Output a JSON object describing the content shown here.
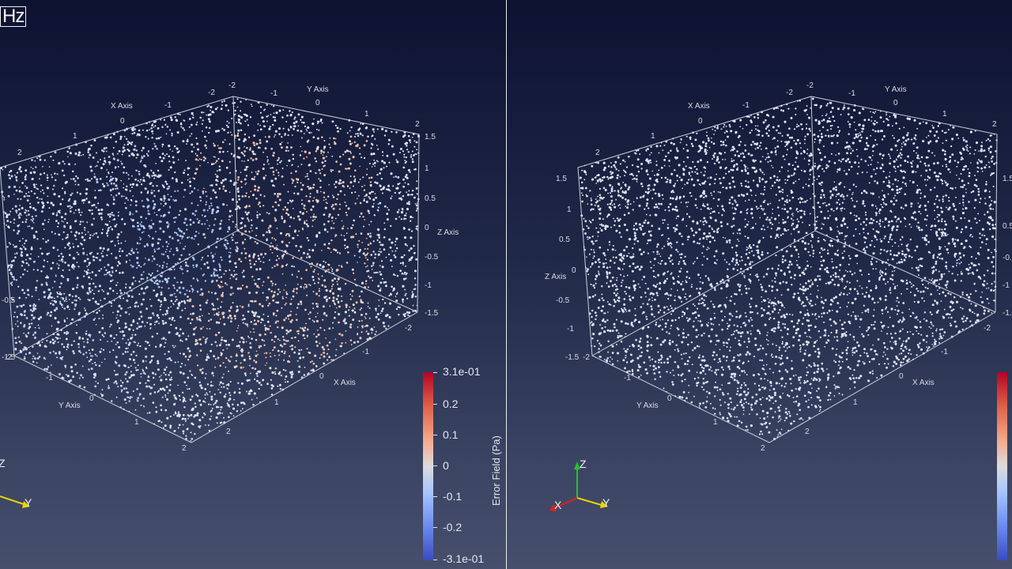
{
  "header": {
    "frequency_unit_label": "Hz"
  },
  "axes": {
    "x_title": "X Axis",
    "y_title": "Y Axis",
    "z_title": "Z Axis",
    "x_ticks": [
      "-2",
      "-1",
      "0",
      "1",
      "2"
    ],
    "y_ticks": [
      "-2",
      "-1",
      "0",
      "1",
      "2"
    ],
    "z_ticks": [
      "-1.5",
      "-1",
      "-0.5",
      "0",
      "0.5",
      "1",
      "1.5"
    ]
  },
  "orientation_triad": {
    "x": "X",
    "y": "Y",
    "z": "Z"
  },
  "colorbar": {
    "title": "Error Field (Pa)",
    "ticks": [
      "3.1e-01",
      "0.2",
      "0.1",
      "0",
      "-0.1",
      "-0.2",
      "-3.1e-01"
    ],
    "range": [
      -0.31,
      0.31
    ],
    "colormap": "coolwarm",
    "colors": {
      "max": "#b40426",
      "mid": "#dcdcdc",
      "min": "#3b4cc0"
    }
  },
  "colors": {
    "background_top": "#0d1231",
    "background_bottom": "#464f6c",
    "axis_line": "#c9ced8"
  }
}
